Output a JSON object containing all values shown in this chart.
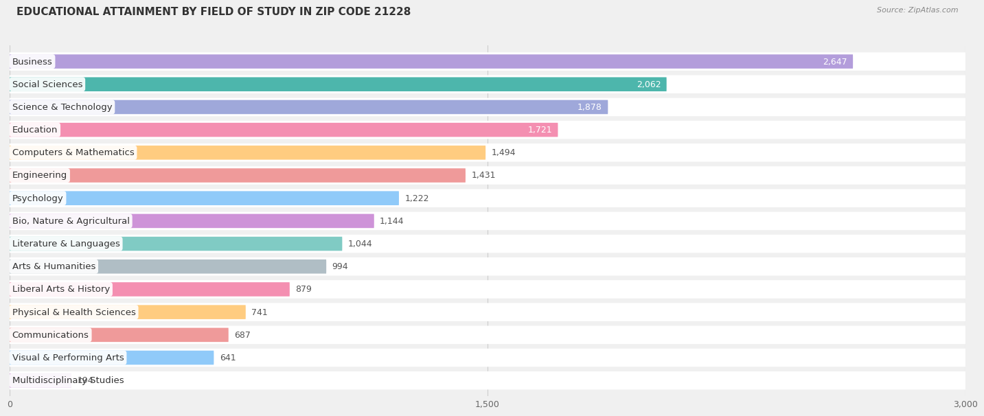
{
  "title": "EDUCATIONAL ATTAINMENT BY FIELD OF STUDY IN ZIP CODE 21228",
  "source": "Source: ZipAtlas.com",
  "categories": [
    "Business",
    "Social Sciences",
    "Science & Technology",
    "Education",
    "Computers & Mathematics",
    "Engineering",
    "Psychology",
    "Bio, Nature & Agricultural",
    "Literature & Languages",
    "Arts & Humanities",
    "Liberal Arts & History",
    "Physical & Health Sciences",
    "Communications",
    "Visual & Performing Arts",
    "Multidisciplinary Studies"
  ],
  "values": [
    2647,
    2062,
    1878,
    1721,
    1494,
    1431,
    1222,
    1144,
    1044,
    994,
    879,
    741,
    687,
    641,
    194
  ],
  "bar_colors": [
    "#b39ddb",
    "#4db6ac",
    "#9fa8da",
    "#f48fb1",
    "#ffcc80",
    "#ef9a9a",
    "#90caf9",
    "#ce93d8",
    "#80cbc4",
    "#b0bec5",
    "#f48fb1",
    "#ffcc80",
    "#ef9a9a",
    "#90caf9",
    "#ce93d8"
  ],
  "xlim": [
    0,
    3000
  ],
  "xticks": [
    0,
    1500,
    3000
  ],
  "background_color": "#f0f0f0",
  "bar_background_color": "#ffffff",
  "title_fontsize": 11,
  "label_fontsize": 9.5,
  "value_fontsize": 9,
  "white_value_threshold": 1721
}
